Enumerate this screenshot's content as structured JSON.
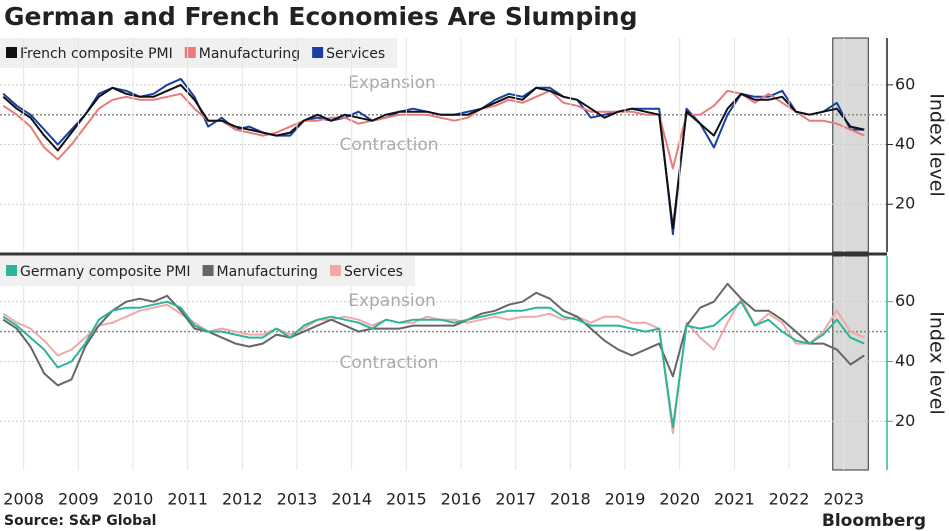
{
  "title": "German and French Economies Are Slumping",
  "source": "Source: S&P Global",
  "logo": "Bloomberg",
  "chart_data": [
    {
      "type": "line",
      "x": [
        2008.125,
        2008.375,
        2008.625,
        2008.875,
        2009.125,
        2009.375,
        2009.625,
        2009.875,
        2010.125,
        2010.375,
        2010.625,
        2010.875,
        2011.125,
        2011.375,
        2011.625,
        2011.875,
        2012.125,
        2012.375,
        2012.625,
        2012.875,
        2013.125,
        2013.375,
        2013.625,
        2013.875,
        2014.125,
        2014.375,
        2014.625,
        2014.875,
        2015.125,
        2015.375,
        2015.625,
        2015.875,
        2016.125,
        2016.375,
        2016.625,
        2016.875,
        2017.125,
        2017.375,
        2017.625,
        2017.875,
        2018.125,
        2018.375,
        2018.625,
        2018.875,
        2019.125,
        2019.375,
        2019.625,
        2019.875,
        2020.125,
        2020.375,
        2020.625,
        2020.875,
        2021.125,
        2021.375,
        2021.625,
        2021.875,
        2022.125,
        2022.375,
        2022.625,
        2022.875,
        2023.125,
        2023.375,
        2023.625,
        2023.875
      ],
      "series": [
        {
          "name": "French composite PMI",
          "color": "#111111",
          "values": [
            56,
            52,
            49,
            43,
            38,
            44,
            50,
            56,
            59,
            57,
            56,
            56,
            58,
            60,
            55,
            48,
            48,
            46,
            45,
            44,
            43,
            44,
            48,
            50,
            48,
            50,
            49,
            48,
            50,
            51,
            51,
            51,
            50,
            50,
            50,
            52,
            54,
            56,
            55,
            59,
            58,
            56,
            55,
            52,
            49,
            51,
            52,
            51,
            50,
            12,
            51,
            47,
            43,
            52,
            57,
            55,
            55,
            56,
            51,
            50,
            51,
            52,
            46,
            45
          ]
        },
        {
          "name": "Manufacturing",
          "color": "#e87a7a",
          "values": [
            53,
            50,
            46,
            39,
            35,
            40,
            46,
            52,
            55,
            56,
            55,
            55,
            56,
            57,
            52,
            48,
            48,
            45,
            44,
            43,
            44,
            46,
            48,
            48,
            49,
            49,
            47,
            48,
            49,
            50,
            50,
            50,
            49,
            48,
            49,
            52,
            53,
            55,
            54,
            56,
            58,
            54,
            53,
            51,
            51,
            51,
            51,
            50,
            50,
            32,
            50,
            50,
            53,
            58,
            57,
            54,
            57,
            54,
            51,
            48,
            48,
            47,
            45,
            43
          ]
        },
        {
          "name": "Services",
          "color": "#1a3fa0",
          "values": [
            57,
            53,
            50,
            45,
            40,
            45,
            50,
            57,
            59,
            58,
            56,
            57,
            60,
            62,
            56,
            46,
            49,
            45,
            46,
            44,
            43,
            43,
            48,
            49,
            48,
            49,
            51,
            48,
            49,
            51,
            52,
            51,
            50,
            50,
            51,
            52,
            55,
            57,
            56,
            59,
            59,
            56,
            55,
            49,
            50,
            51,
            52,
            52,
            52,
            10,
            52,
            47,
            39,
            50,
            57,
            56,
            56,
            58,
            51,
            50,
            51,
            54,
            45,
            45
          ]
        }
      ],
      "xlim": [
        2008.067,
        2024.292
      ],
      "ylim": [
        4,
        75.7
      ],
      "yticks": [
        20,
        40,
        60
      ],
      "reference_line": 50,
      "shaded_region": [
        2023.3,
        2023.95
      ],
      "annotations": [
        "Expansion",
        "Contraction"
      ],
      "y_label": "Index level",
      "axis_color": "#222222"
    },
    {
      "type": "line",
      "x": [
        2008.125,
        2008.375,
        2008.625,
        2008.875,
        2009.125,
        2009.375,
        2009.625,
        2009.875,
        2010.125,
        2010.375,
        2010.625,
        2010.875,
        2011.125,
        2011.375,
        2011.625,
        2011.875,
        2012.125,
        2012.375,
        2012.625,
        2012.875,
        2013.125,
        2013.375,
        2013.625,
        2013.875,
        2014.125,
        2014.375,
        2014.625,
        2014.875,
        2015.125,
        2015.375,
        2015.625,
        2015.875,
        2016.125,
        2016.375,
        2016.625,
        2016.875,
        2017.125,
        2017.375,
        2017.625,
        2017.875,
        2018.125,
        2018.375,
        2018.625,
        2018.875,
        2019.125,
        2019.375,
        2019.625,
        2019.875,
        2020.125,
        2020.375,
        2020.625,
        2020.875,
        2021.125,
        2021.375,
        2021.625,
        2021.875,
        2022.125,
        2022.375,
        2022.625,
        2022.875,
        2023.125,
        2023.375,
        2023.625,
        2023.875
      ],
      "series": [
        {
          "name": "Germany composite PMI",
          "color": "#2bb59a",
          "values": [
            55,
            52,
            48,
            44,
            38,
            40,
            46,
            54,
            57,
            58,
            58,
            59,
            60,
            58,
            52,
            50,
            50,
            49,
            48,
            48,
            51,
            48,
            52,
            54,
            55,
            54,
            53,
            51,
            54,
            53,
            54,
            54,
            54,
            53,
            54,
            55,
            56,
            57,
            57,
            58,
            58,
            55,
            54,
            52,
            52,
            52,
            51,
            50,
            51,
            18,
            52,
            51,
            52,
            56,
            60,
            52,
            54,
            50,
            47,
            46,
            49,
            54,
            48,
            46
          ]
        },
        {
          "name": "Manufacturing",
          "color": "#666666",
          "values": [
            54,
            51,
            45,
            36,
            32,
            34,
            45,
            52,
            57,
            60,
            61,
            60,
            62,
            57,
            51,
            50,
            48,
            46,
            45,
            46,
            49,
            48,
            50,
            52,
            54,
            52,
            50,
            51,
            51,
            51,
            52,
            52,
            52,
            52,
            54,
            56,
            57,
            59,
            60,
            63,
            61,
            57,
            55,
            51,
            47,
            44,
            42,
            44,
            46,
            35,
            52,
            58,
            60,
            66,
            61,
            57,
            57,
            54,
            50,
            46,
            46,
            44,
            39,
            42
          ]
        },
        {
          "name": "Services",
          "color": "#f2a8a8",
          "values": [
            56,
            53,
            51,
            47,
            42,
            44,
            48,
            52,
            53,
            55,
            57,
            58,
            59,
            56,
            53,
            50,
            51,
            50,
            49,
            49,
            51,
            49,
            51,
            54,
            54,
            55,
            54,
            52,
            54,
            53,
            53,
            55,
            54,
            54,
            53,
            54,
            55,
            54,
            55,
            55,
            56,
            54,
            55,
            53,
            55,
            55,
            53,
            53,
            51,
            16,
            53,
            48,
            44,
            53,
            61,
            52,
            56,
            53,
            46,
            46,
            50,
            57,
            50,
            48
          ]
        }
      ],
      "xlim": [
        2008.067,
        2024.292
      ],
      "xticks": [
        {
          "value": 2008.5,
          "label": "2008"
        },
        {
          "value": 2009.5,
          "label": "2009"
        },
        {
          "value": 2010.5,
          "label": "2010"
        },
        {
          "value": 2011.5,
          "label": "2011"
        },
        {
          "value": 2012.5,
          "label": "2012"
        },
        {
          "value": 2013.5,
          "label": "2013"
        },
        {
          "value": 2014.5,
          "label": "2014"
        },
        {
          "value": 2015.5,
          "label": "2015"
        },
        {
          "value": 2016.5,
          "label": "2016"
        },
        {
          "value": 2017.5,
          "label": "2017"
        },
        {
          "value": 2018.5,
          "label": "2018"
        },
        {
          "value": 2019.5,
          "label": "2019"
        },
        {
          "value": 2020.5,
          "label": "2020"
        },
        {
          "value": 2021.5,
          "label": "2021"
        },
        {
          "value": 2022.5,
          "label": "2022"
        },
        {
          "value": 2023.5,
          "label": "2023"
        }
      ],
      "ylim": [
        3.7,
        75.3
      ],
      "yticks": [
        20,
        40,
        60
      ],
      "reference_line": 50,
      "shaded_region": [
        2023.3,
        2023.95
      ],
      "annotations": [
        "Expansion",
        "Contraction"
      ],
      "y_label": "Index level",
      "axis_color": "#2bb59a"
    }
  ]
}
